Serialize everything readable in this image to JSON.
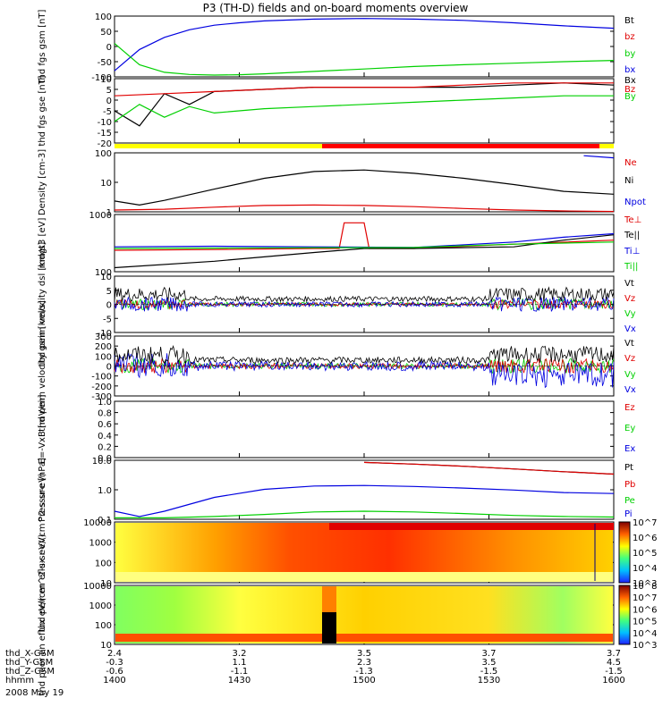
{
  "title": "P3 (TH-D) fields and on-board moments overview",
  "colors": {
    "black": "#000000",
    "red": "#e00000",
    "green": "#00d000",
    "blue": "#0000e0"
  },
  "chart_data": [
    {
      "type": "line",
      "ylabel": "thd fgs gsm [nT]",
      "ylim": [
        -100,
        100
      ],
      "yticks": [
        "100",
        "50",
        "0",
        "-50",
        "-100"
      ],
      "legend": [
        "Bt",
        "bz",
        "by",
        "bx"
      ],
      "series": [
        {
          "name": "Bt",
          "color": "#000000",
          "values": []
        },
        {
          "name": "bz",
          "color": "#0000e0",
          "x": [
            0,
            0.05,
            0.1,
            0.15,
            0.2,
            0.25,
            0.3,
            0.4,
            0.5,
            0.6,
            0.7,
            0.8,
            0.9,
            1.0
          ],
          "values": [
            -80,
            -10,
            30,
            55,
            70,
            78,
            84,
            90,
            92,
            90,
            86,
            78,
            68,
            60
          ]
        },
        {
          "name": "by",
          "color": "#00d000",
          "x": [
            0,
            0.05,
            0.1,
            0.15,
            0.2,
            0.25,
            0.3,
            0.4,
            0.5,
            0.6,
            0.7,
            0.8,
            0.9,
            1.0
          ],
          "values": [
            10,
            -60,
            -85,
            -92,
            -94,
            -93,
            -90,
            -82,
            -74,
            -66,
            -60,
            -55,
            -50,
            -46
          ]
        },
        {
          "name": "bx",
          "color": "#0000e0",
          "values": []
        }
      ]
    },
    {
      "type": "line",
      "ylabel": "thd fgs gse [nT]",
      "ylim": [
        -20,
        10
      ],
      "yticks": [
        "10",
        "5",
        "0",
        "-5",
        "-10",
        "-15",
        "-20"
      ],
      "legend": [
        "Bx",
        "Bz",
        "By"
      ],
      "series": [
        {
          "name": "Bx",
          "color": "#000000",
          "x": [
            0,
            0.05,
            0.1,
            0.15,
            0.2,
            0.3,
            0.4,
            0.5,
            0.6,
            0.7,
            0.8,
            0.9,
            1.0
          ],
          "values": [
            -5,
            -12,
            3,
            -2,
            4,
            5,
            6,
            6,
            6,
            6,
            7,
            8,
            7
          ]
        },
        {
          "name": "Bz",
          "color": "#e00000",
          "x": [
            0,
            0.1,
            0.2,
            0.3,
            0.4,
            0.5,
            0.6,
            0.7,
            0.8,
            0.9,
            1.0
          ],
          "values": [
            2,
            3,
            4,
            5,
            6,
            6,
            6,
            7,
            8,
            8,
            8
          ]
        },
        {
          "name": "By",
          "color": "#00d000",
          "x": [
            0,
            0.05,
            0.1,
            0.15,
            0.2,
            0.3,
            0.4,
            0.5,
            0.6,
            0.7,
            0.8,
            0.9,
            1.0
          ],
          "values": [
            -10,
            -2,
            -8,
            -3,
            -6,
            -4,
            -3,
            -2,
            -1,
            0,
            1,
            2,
            2
          ]
        }
      ]
    },
    {
      "type": "line",
      "ylabel": "Density [cm-3]",
      "ylim": [
        0.5,
        200
      ],
      "yscale": "log",
      "yticks": [
        "100",
        "10",
        "1"
      ],
      "legend": [
        "Ne",
        "Ni",
        "Npot"
      ],
      "series": [
        {
          "name": "Ne",
          "color": "#e00000",
          "x": [
            0,
            0.1,
            0.2,
            0.3,
            0.4,
            0.5,
            0.6,
            0.7,
            0.8,
            0.9,
            1.0
          ],
          "values": [
            0.6,
            0.65,
            0.8,
            0.95,
            1.0,
            0.95,
            0.85,
            0.7,
            0.6,
            0.55,
            0.52
          ]
        },
        {
          "name": "Ni",
          "color": "#000000",
          "x": [
            0,
            0.05,
            0.1,
            0.2,
            0.3,
            0.4,
            0.5,
            0.6,
            0.7,
            0.8,
            0.9,
            1.0
          ],
          "values": [
            1.5,
            1.0,
            1.6,
            5,
            15,
            30,
            35,
            25,
            15,
            8,
            4,
            3
          ]
        },
        {
          "name": "Npot",
          "color": "#0000e0",
          "x": [
            0.94,
            1.0
          ],
          "values": [
            150,
            120
          ]
        }
      ]
    },
    {
      "type": "line",
      "ylabel": "mdgt3 [eV]",
      "ylim": [
        50,
        6000
      ],
      "yscale": "log",
      "yticks": [
        "1000",
        "100"
      ],
      "legend": [
        "Te⊥",
        "Te||",
        "Ti⊥",
        "Ti||"
      ],
      "series": [
        {
          "name": "Te⊥",
          "color": "#e00000",
          "x": [
            0,
            0.2,
            0.4,
            0.45,
            0.46,
            0.5,
            0.51,
            0.6,
            0.8,
            1.0
          ],
          "values": [
            300,
            320,
            350,
            350,
            3000,
            3000,
            350,
            350,
            500,
            700
          ]
        },
        {
          "name": "Te||",
          "color": "#000000",
          "x": [
            0,
            0.2,
            0.4,
            0.5,
            0.6,
            0.8,
            0.9,
            1.0
          ],
          "values": [
            70,
            120,
            250,
            350,
            350,
            400,
            700,
            1100
          ]
        },
        {
          "name": "Ti⊥",
          "color": "#0000e0",
          "x": [
            0,
            0.2,
            0.4,
            0.6,
            0.8,
            0.9,
            1.0
          ],
          "values": [
            400,
            420,
            400,
            380,
            600,
            900,
            1200
          ]
        },
        {
          "name": "Ti||",
          "color": "#00d000",
          "x": [
            0,
            0.2,
            0.4,
            0.6,
            0.8,
            1.0
          ],
          "values": [
            350,
            360,
            370,
            380,
            500,
            600
          ]
        }
      ]
    },
    {
      "type": "line",
      "ylabel": "thd peim velocity dsl [km/s]",
      "ylim": [
        -10,
        10
      ],
      "yticks": [
        "10",
        "5",
        "0",
        "-5",
        "-10"
      ],
      "legend": [
        "Vt",
        "Vz",
        "Vy",
        "Vx"
      ],
      "series": [
        {
          "name": "Vt",
          "color": "#000000",
          "values": []
        },
        {
          "name": "Vz",
          "color": "#e00000",
          "values": []
        },
        {
          "name": "Vy",
          "color": "#00d000",
          "values": []
        },
        {
          "name": "Vx",
          "color": "#0000e0",
          "values": []
        }
      ]
    },
    {
      "type": "line",
      "ylabel": "thd peim velocity gsm [km/s]",
      "ylim": [
        -300,
        300
      ],
      "yticks": [
        "300",
        "200",
        "100",
        "0",
        "-100",
        "-200",
        "-300"
      ],
      "legend": [
        "Vt",
        "Vz",
        "Vy",
        "Vx"
      ],
      "series": [
        {
          "name": "Vt",
          "color": "#000000",
          "values": []
        },
        {
          "name": "Vz",
          "color": "#e00000",
          "values": []
        },
        {
          "name": "Vy",
          "color": "#00d000",
          "values": []
        },
        {
          "name": "Vx",
          "color": "#0000e0",
          "values": []
        }
      ]
    },
    {
      "type": "line",
      "ylabel": "E=-VxB [mV/m]",
      "ylim": [
        0,
        1
      ],
      "yticks": [
        "1.0",
        "0.8",
        "0.6",
        "0.4",
        "0.2",
        "0.0"
      ],
      "legend": [
        "Ez",
        "Ey",
        "Ex"
      ],
      "series": []
    },
    {
      "type": "line",
      "ylabel": "Pressure [nPa]",
      "ylim": [
        0.03,
        15
      ],
      "yscale": "log",
      "yticks": [
        "10.0",
        "1.0",
        "0.1"
      ],
      "legend": [
        "Pt",
        "Pb",
        "Pe",
        "Pi"
      ],
      "series": [
        {
          "name": "Pt",
          "color": "#000000",
          "x": [
            0.5,
            0.6,
            0.7,
            0.8,
            0.9,
            1.0
          ],
          "values": [
            12,
            10,
            8,
            6,
            4.5,
            3.5
          ]
        },
        {
          "name": "Pb",
          "color": "#e00000",
          "x": [
            0.5,
            0.6,
            0.7,
            0.8,
            0.9,
            1.0
          ],
          "values": [
            12,
            10,
            8,
            6,
            4.5,
            3.5
          ]
        },
        {
          "name": "Pe",
          "color": "#00d000",
          "x": [
            0,
            0.1,
            0.2,
            0.3,
            0.4,
            0.5,
            0.6,
            0.7,
            0.8,
            0.9,
            1.0
          ],
          "values": [
            0.035,
            0.035,
            0.04,
            0.05,
            0.065,
            0.07,
            0.065,
            0.055,
            0.045,
            0.04,
            0.038
          ]
        },
        {
          "name": "Pi",
          "color": "#0000e0",
          "x": [
            0,
            0.05,
            0.1,
            0.2,
            0.3,
            0.4,
            0.5,
            0.6,
            0.7,
            0.8,
            0.9,
            1.0
          ],
          "values": [
            0.07,
            0.04,
            0.07,
            0.3,
            0.7,
            1.0,
            1.05,
            0.95,
            0.8,
            0.65,
            0.5,
            0.45
          ]
        }
      ]
    },
    {
      "type": "heatmap",
      "ylabel": "thd peir en eflux eV/(cm^2-s-sr-eV)",
      "yscale": "log",
      "yticks": [
        "10000",
        "1000",
        "100",
        "10"
      ],
      "colorbar": {
        "ticks": [
          "10^7",
          "10^6",
          "10^5",
          "10^4",
          "10^3"
        ]
      }
    },
    {
      "type": "heatmap",
      "ylabel": "thd peer en eflux eV/(cm^2-s-sr-eV)",
      "yscale": "log",
      "yticks": [
        "10000",
        "1000",
        "100",
        "10"
      ],
      "colorbar": {
        "ticks": [
          "10^8",
          "10^7",
          "10^6",
          "10^5",
          "10^4",
          "10^3"
        ]
      }
    }
  ],
  "x_axis": {
    "rows": [
      {
        "label": "thd_X-GSM",
        "values": [
          "2.4",
          "3.2",
          "3.5",
          "3.7",
          "3.7"
        ]
      },
      {
        "label": "thd_Y-GSM",
        "values": [
          "-0.3",
          "1.1",
          "2.3",
          "3.5",
          "4.5"
        ]
      },
      {
        "label": "thd_Z-GSM",
        "values": [
          "-0.6",
          "-1.1",
          "-1.3",
          "-1.5",
          "-1.5"
        ]
      },
      {
        "label": "hhmm",
        "values": [
          "1400",
          "1430",
          "1500",
          "1530",
          "1600"
        ]
      }
    ],
    "date": "2008 May 19"
  }
}
